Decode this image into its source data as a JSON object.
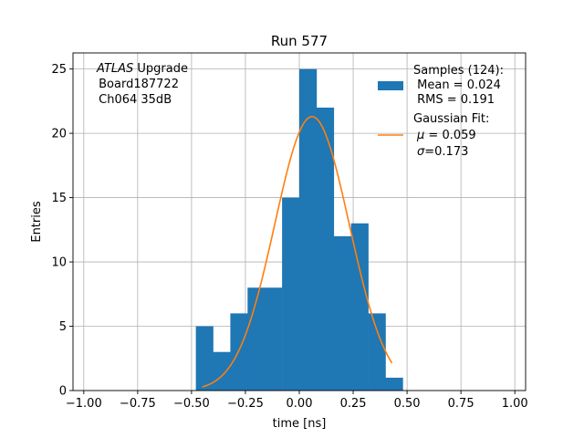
{
  "chart_data": {
    "type": "bar",
    "title": "Run 577",
    "xlabel": "time [ns]",
    "ylabel": "Entries",
    "xlim": [
      -1.05,
      1.05
    ],
    "ylim": [
      0,
      26.25
    ],
    "grid": true,
    "x_ticks": [
      -1.0,
      -0.75,
      -0.5,
      -0.25,
      0.0,
      0.25,
      0.5,
      0.75,
      1.0
    ],
    "x_tick_labels": [
      "−1.00",
      "−0.75",
      "−0.50",
      "−0.25",
      "0.00",
      "0.25",
      "0.50",
      "0.75",
      "1.00"
    ],
    "y_ticks": [
      0,
      5,
      10,
      15,
      20,
      25
    ],
    "y_tick_labels": [
      "0",
      "5",
      "10",
      "15",
      "20",
      "25"
    ],
    "info_lines": [
      {
        "italic": "ATLAS",
        "text": " Upgrade"
      },
      {
        "italic": "",
        "text": " Board187722"
      },
      {
        "italic": "",
        "text": " Ch064 35dB"
      }
    ],
    "histogram": {
      "name": "Samples (124):",
      "color": "#1f77b4",
      "bin_edges": [
        -0.48,
        -0.4,
        -0.32,
        -0.24,
        -0.16,
        -0.08,
        0.0,
        0.08,
        0.16,
        0.24,
        0.32,
        0.4,
        0.48
      ],
      "counts": [
        5,
        3,
        6,
        8,
        8,
        15,
        25,
        22,
        12,
        13,
        6,
        1
      ],
      "stats": [
        " Mean = 0.024",
        " RMS = 0.191"
      ]
    },
    "fit": {
      "name": "Gaussian Fit:",
      "color": "#ff7f0e",
      "amplitude": 21.3,
      "mu": 0.059,
      "sigma": 0.173,
      "x_range": [
        -0.45,
        0.43
      ],
      "params": [
        {
          "italic": "μ",
          "text": " = 0.059"
        },
        {
          "italic": "σ",
          "text": "=0.173"
        }
      ]
    },
    "legend_position": "top-right"
  }
}
